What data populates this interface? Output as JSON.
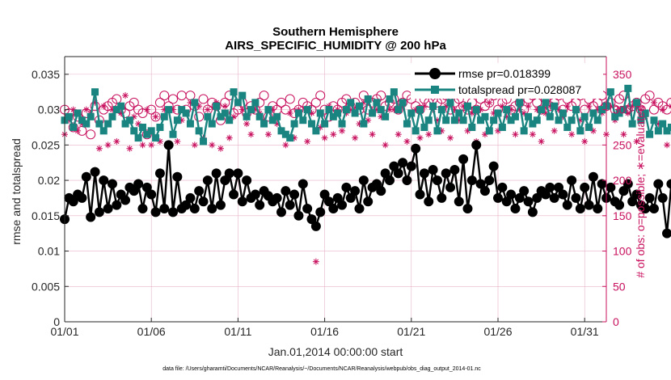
{
  "chart_data": {
    "type": "line",
    "title": "Southern Hemisphere",
    "subtitle": "AIRS_SPECIFIC_HUMIDITY @ 200 hPa",
    "xlabel": "Jan.01,2014 00:00:00 start",
    "ylabel": "rmse and totalspread",
    "ylabel_right": "# of obs: o=possible; ∗=evaluated",
    "footnote": "data file: /Users/gharamti/Documents/NCAR/Reanalysis/~/Documents/NCAR/Reanalysis/webpub/obs_diag_output_2014-01.nc",
    "x_tick_labels": [
      "01/01",
      "01/06",
      "01/11",
      "01/16",
      "01/21",
      "01/26",
      "01/31"
    ],
    "x_tick_days": [
      1,
      6,
      11,
      16,
      21,
      26,
      31
    ],
    "xlim_days": [
      1,
      32.25
    ],
    "ylim": [
      0,
      0.0375
    ],
    "y_ticks": [
      "0",
      "0.005",
      "0.01",
      "0.015",
      "0.02",
      "0.025",
      "0.03",
      "0.035"
    ],
    "ylim_right": [
      0,
      375
    ],
    "y_ticks_right": [
      "0",
      "50",
      "100",
      "150",
      "200",
      "250",
      "300",
      "350"
    ],
    "grid": true,
    "legend_position": "top-right",
    "colors": {
      "rmse": "#000000",
      "totalspread": "#1a8580",
      "obs": "#c8105e"
    },
    "x_step_days": 0.25,
    "series": [
      {
        "name": "rmse pr=0.018399",
        "values": [
          0.0145,
          0.0175,
          0.017,
          0.018,
          0.0175,
          0.0205,
          0.0148,
          0.0212,
          0.0155,
          0.02,
          0.016,
          0.0195,
          0.0165,
          0.018,
          0.0172,
          0.019,
          0.0185,
          0.0195,
          0.016,
          0.019,
          0.018,
          0.0155,
          0.021,
          0.016,
          0.025,
          0.0155,
          0.0205,
          0.016,
          0.0165,
          0.0175,
          0.016,
          0.0185,
          0.017,
          0.02,
          0.016,
          0.021,
          0.0165,
          0.02,
          0.021,
          0.018,
          0.021,
          0.017,
          0.02,
          0.0175,
          0.018,
          0.0165,
          0.0185,
          0.0178,
          0.017,
          0.0175,
          0.0155,
          0.0185,
          0.0165,
          0.018,
          0.015,
          0.0195,
          0.016,
          0.0145,
          0.0135,
          0.0155,
          0.018,
          0.017,
          0.016,
          0.0175,
          0.0165,
          0.019,
          0.0175,
          0.0185,
          0.016,
          0.02,
          0.017,
          0.019,
          0.0195,
          0.0185,
          0.021,
          0.02,
          0.022,
          0.021,
          0.0225,
          0.02,
          0.022,
          0.0245,
          0.018,
          0.021,
          0.017,
          0.0215,
          0.02,
          0.0175,
          0.021,
          0.019,
          0.0215,
          0.017,
          0.023,
          0.016,
          0.02,
          0.025,
          0.0195,
          0.0185,
          0.02,
          0.022,
          0.0175,
          0.019,
          0.017,
          0.018,
          0.016,
          0.0175,
          0.0185,
          0.017,
          0.0155,
          0.0175,
          0.0185,
          0.018,
          0.019,
          0.0175,
          0.019,
          0.018,
          0.0165,
          0.02,
          0.0175,
          0.016,
          0.019,
          0.0165,
          0.0205,
          0.016,
          0.0195,
          0.0175,
          0.019,
          0.017,
          0.0165,
          0.0185,
          0.0195,
          0.017,
          0.018,
          0.0165,
          0.016,
          0.0175,
          0.016,
          0.0195,
          0.0175,
          0.0125,
          0.0195,
          0.02,
          0.0155,
          0.0185,
          0.022,
          0.0155
        ]
      },
      {
        "name": "totalspread pr=0.028087",
        "values": [
          0.0285,
          0.029,
          0.0275,
          0.0295,
          0.0285,
          0.028,
          0.029,
          0.0325,
          0.028,
          0.027,
          0.028,
          0.029,
          0.03,
          0.0305,
          0.028,
          0.0285,
          0.027,
          0.026,
          0.0275,
          0.0265,
          0.027,
          0.026,
          0.0275,
          0.029,
          0.03,
          0.0265,
          0.0285,
          0.03,
          0.0295,
          0.028,
          0.031,
          0.027,
          0.0255,
          0.029,
          0.028,
          0.0305,
          0.029,
          0.0295,
          0.0285,
          0.0325,
          0.031,
          0.032,
          0.029,
          0.03,
          0.031,
          0.029,
          0.028,
          0.03,
          0.0285,
          0.029,
          0.027,
          0.0265,
          0.026,
          0.028,
          0.0295,
          0.0285,
          0.03,
          0.028,
          0.027,
          0.0295,
          0.028,
          0.03,
          0.029,
          0.0295,
          0.028,
          0.03,
          0.031,
          0.0295,
          0.0305,
          0.028,
          0.0315,
          0.0295,
          0.031,
          0.03,
          0.029,
          0.0315,
          0.0325,
          0.03,
          0.031,
          0.028,
          0.0295,
          0.027,
          0.03,
          0.0275,
          0.0285,
          0.0305,
          0.027,
          0.03,
          0.0285,
          0.031,
          0.0285,
          0.0295,
          0.0285,
          0.0305,
          0.0275,
          0.03,
          0.0285,
          0.029,
          0.027,
          0.0285,
          0.0295,
          0.0275,
          0.03,
          0.0285,
          0.029,
          0.031,
          0.027,
          0.029,
          0.028,
          0.0285,
          0.03,
          0.031,
          0.029,
          0.0305,
          0.0285,
          0.0295,
          0.0275,
          0.0285,
          0.03,
          0.027,
          0.029,
          0.0275,
          0.0295,
          0.0285,
          0.03,
          0.0305,
          0.0325,
          0.029,
          0.0295,
          0.03,
          0.033,
          0.028,
          0.031,
          0.0285,
          0.0295,
          0.0265,
          0.0285,
          0.027,
          0.028,
          0.027,
          0.0275,
          0.0265,
          0.0275,
          0.027,
          0.0265,
          0.028,
          0.0275,
          0.027
        ]
      }
    ],
    "obs_possible": [
      300,
      295,
      275,
      290,
      270,
      295,
      265,
      305,
      285,
      300,
      305,
      310,
      315,
      300,
      295,
      305,
      310,
      300,
      295,
      265,
      300,
      290,
      310,
      320,
      305,
      315,
      300,
      320,
      300,
      320,
      305,
      290,
      315,
      300,
      310,
      305,
      285,
      310,
      320,
      295,
      300,
      310,
      295,
      305,
      300,
      310,
      320,
      290,
      305,
      300,
      310,
      300,
      315,
      295,
      300,
      310,
      305,
      300,
      310,
      320,
      300,
      290,
      305,
      300,
      310,
      315,
      305,
      310,
      300,
      320,
      300,
      310,
      315,
      320,
      305,
      310,
      315,
      300,
      310,
      320,
      315,
      305,
      300,
      315,
      310,
      315,
      310,
      315,
      320,
      300,
      310,
      315,
      305,
      300,
      310,
      300,
      315,
      305,
      310,
      320,
      300,
      310,
      315,
      300,
      305,
      310,
      300,
      315,
      320,
      310,
      300,
      315,
      305,
      310,
      320,
      300,
      315,
      305,
      310,
      320,
      300,
      315,
      305,
      310,
      320,
      305,
      310,
      300,
      315,
      320,
      300,
      305,
      310,
      300,
      315,
      320,
      300,
      310,
      305,
      300,
      310,
      315,
      305,
      300,
      310,
      305
    ],
    "obs_evaluated": [
      265,
      285,
      300,
      270,
      280,
      300,
      295,
      310,
      245,
      305,
      250,
      300,
      255,
      295,
      320,
      245,
      290,
      280,
      250,
      300,
      250,
      290,
      255,
      300,
      250,
      300,
      255,
      285,
      295,
      310,
      250,
      305,
      260,
      300,
      250,
      310,
      245,
      305,
      260,
      290,
      310,
      300,
      280,
      265,
      300,
      295,
      285,
      265,
      300,
      280,
      270,
      250,
      295,
      260,
      300,
      285,
      255,
      295,
      85,
      275,
      260,
      305,
      265,
      300,
      270,
      295,
      300,
      260,
      280,
      310,
      285,
      265,
      300,
      290,
      250,
      300,
      300,
      265,
      305,
      255,
      295,
      300,
      260,
      305,
      265,
      300,
      285,
      270,
      305,
      260,
      300,
      285,
      305,
      270,
      295,
      255,
      300,
      265,
      310,
      295,
      270,
      305,
      290,
      300,
      265,
      300,
      295,
      305,
      265,
      300,
      255,
      295,
      305,
      270,
      300,
      290,
      305,
      265,
      300,
      285,
      255,
      305,
      270,
      300,
      295,
      265,
      305,
      285,
      300,
      265,
      295,
      305,
      255,
      300,
      290,
      265,
      310,
      280,
      300,
      250,
      305,
      265,
      295,
      255,
      305,
      0
    ]
  }
}
